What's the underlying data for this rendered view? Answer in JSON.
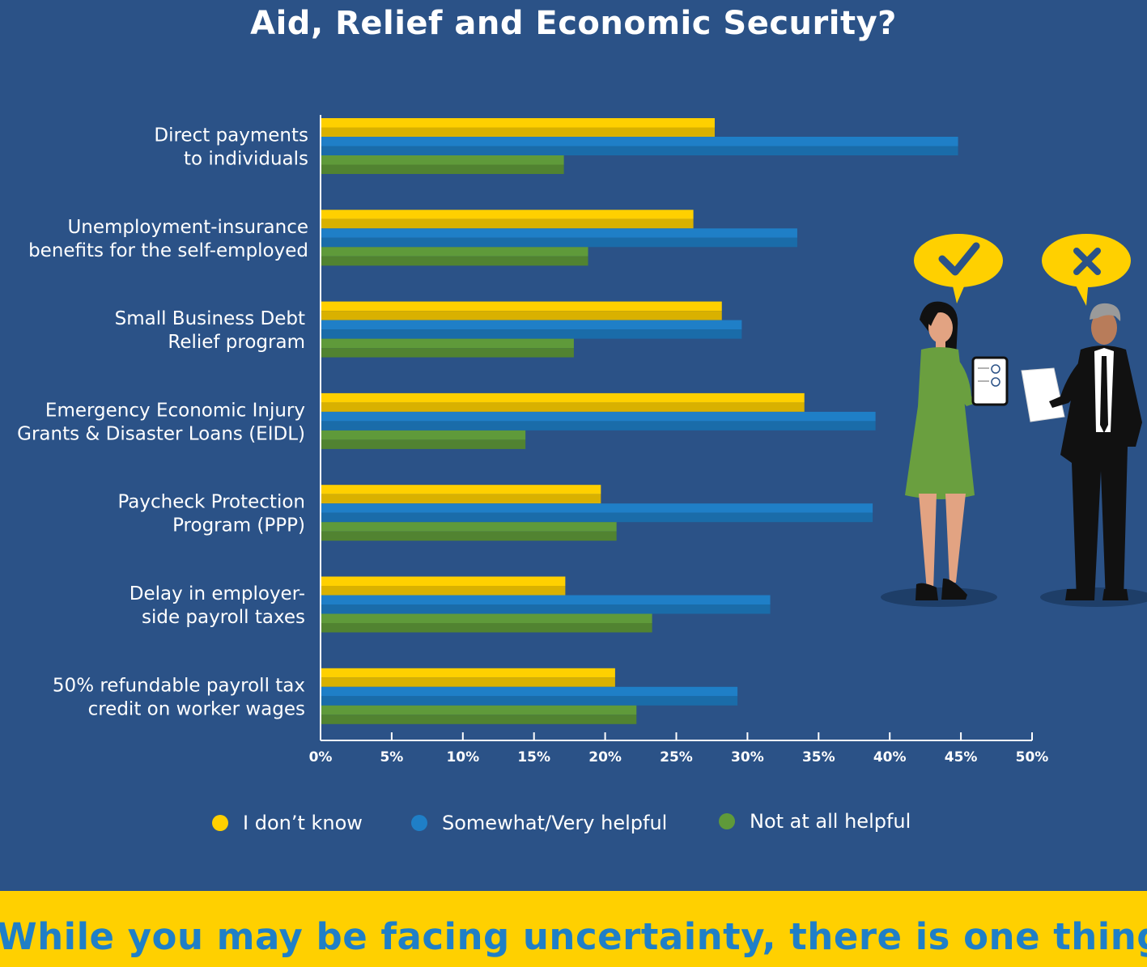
{
  "title": "Aid, Relief and Economic Security?",
  "colors": {
    "background": "#2b5287",
    "i_dont_know": "#ffd000",
    "somewhat_very_helpful": "#1f7fc7",
    "not_at_all_helpful": "#5f9a3a",
    "footer_bg": "#ffd000",
    "footer_text": "#1f7fc7"
  },
  "chart_data": {
    "type": "bar",
    "orientation": "horizontal",
    "categories": [
      [
        "Direct payments",
        "to individuals"
      ],
      [
        "Unemployment-insurance",
        "benefits for the self-employed"
      ],
      [
        "Small Business Debt",
        "Relief program"
      ],
      [
        "Emergency Economic Injury",
        "Grants & Disaster Loans (EIDL)"
      ],
      [
        "Paycheck Protection",
        "Program (PPP)"
      ],
      [
        "Delay in employer-",
        "side payroll taxes"
      ],
      [
        "50% refundable payroll tax",
        "credit on worker wages"
      ]
    ],
    "series": [
      {
        "name": "I don’t know",
        "color": "#ffd000",
        "values": [
          27.7,
          26.2,
          28.2,
          34.0,
          19.7,
          17.2,
          20.7
        ]
      },
      {
        "name": "Somewhat/Very helpful",
        "color": "#1f7fc7",
        "values": [
          44.8,
          33.5,
          29.6,
          39.0,
          38.8,
          31.6,
          29.3
        ]
      },
      {
        "name": "Not at all helpful",
        "color": "#5f9a3a",
        "values": [
          17.1,
          18.8,
          17.8,
          14.4,
          20.8,
          23.3,
          22.2
        ]
      }
    ],
    "xticks": [
      "0%",
      "5%",
      "10%",
      "15%",
      "20%",
      "25%",
      "30%",
      "35%",
      "40%",
      "45%",
      "50%"
    ],
    "xlim": [
      0,
      50
    ],
    "legend_position": "bottom",
    "grid": false
  },
  "legend": [
    {
      "label": "I don’t know",
      "color": "#ffd000"
    },
    {
      "label": "Somewhat/Very helpful",
      "color": "#1f7fc7"
    },
    {
      "label": "Not at all helpful",
      "color": "#5f9a3a"
    }
  ],
  "footer": {
    "text": "While you may be facing uncertainty, there is one thing"
  },
  "illustration": {
    "left_bubble_icon": "checkmark-icon",
    "right_bubble_icon": "cross-icon"
  }
}
